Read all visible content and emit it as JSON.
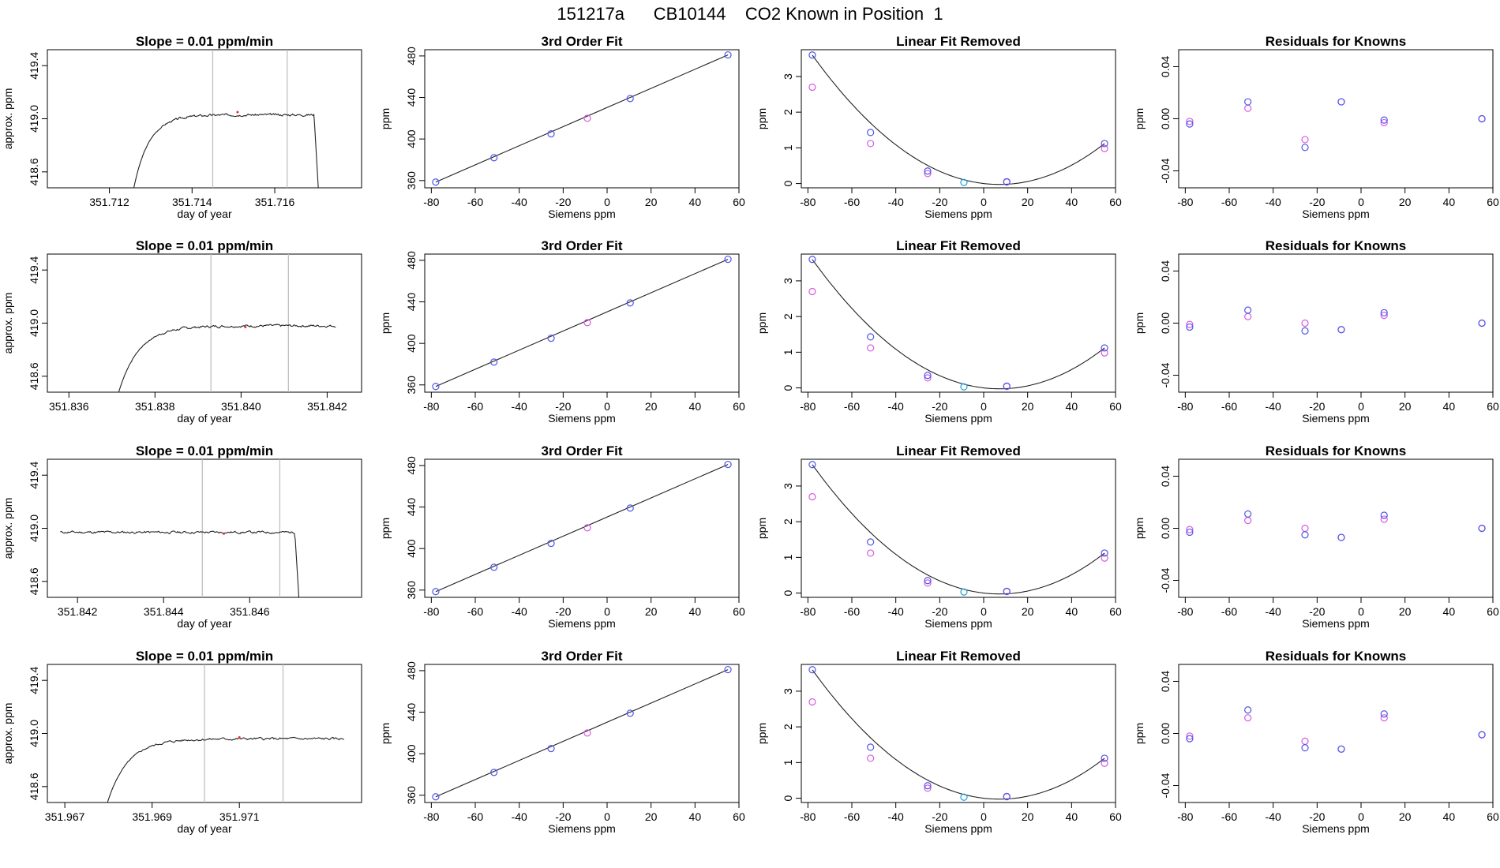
{
  "page_title": "151217a      CB10144    CO2 Known in Position  1",
  "colors": {
    "axis": "#000000",
    "line": "#222222",
    "marker_pink": "#d65ae0",
    "marker_blue": "#4d55e8",
    "marker_cyan": "#1ea0d8",
    "vline": "#bbbbbb",
    "red_mark": "#e03030"
  },
  "chart_data": [
    {
      "type": "line",
      "row": 1,
      "title": "Slope =  0.01  ppm/min",
      "xlabel": "day of year",
      "ylabel": "approx. ppm",
      "xlim": [
        351.7105,
        351.7181
      ],
      "ylim": [
        418.48,
        419.52
      ],
      "xticks": [
        351.712,
        351.714,
        351.716
      ],
      "yticks": [
        418.6,
        419.0,
        419.4
      ],
      "vlines": [
        351.7145,
        351.7163
      ],
      "red_point": [
        351.7151,
        419.05
      ],
      "start": 351.7125,
      "end": 351.7171,
      "drop": 351.71695,
      "level": 419.03,
      "rise": 0.0012,
      "amp": 0.016,
      "seed": 3
    },
    {
      "type": "line",
      "row": 2,
      "title": "Slope =  0.01  ppm/min",
      "xlabel": "day of year",
      "ylabel": "approx. ppm",
      "xlim": [
        351.8355,
        351.8428
      ],
      "ylim": [
        418.48,
        419.52
      ],
      "xticks": [
        351.836,
        351.838,
        351.84,
        351.842
      ],
      "yticks": [
        418.6,
        419.0,
        419.4
      ],
      "vlines": [
        351.8393,
        351.8411
      ],
      "red_point": [
        351.8401,
        418.97
      ],
      "start": 351.837,
      "end": 351.8422,
      "drop": null,
      "level": 418.98,
      "rise": 0.0015,
      "amp": 0.018,
      "seed": 7
    },
    {
      "type": "line",
      "row": 3,
      "title": "Slope =  0.01  ppm/min",
      "xlabel": "day of year",
      "ylabel": "approx. ppm",
      "xlim": [
        351.8413,
        351.8486
      ],
      "ylim": [
        418.48,
        419.52
      ],
      "xticks": [
        351.842,
        351.844,
        351.846
      ],
      "yticks": [
        418.6,
        419.0,
        419.4
      ],
      "vlines": [
        351.8449,
        351.8467
      ],
      "red_point": [
        351.8454,
        418.96
      ],
      "start": 351.8416,
      "end": 351.8472,
      "drop": 351.84705,
      "level": 418.97,
      "rise": 0,
      "amp": 0.018,
      "seed": 11
    },
    {
      "type": "line",
      "row": 4,
      "title": "Slope =  0.01  ppm/min",
      "xlabel": "day of year",
      "ylabel": "approx. ppm",
      "xlim": [
        351.9666,
        351.9738
      ],
      "ylim": [
        418.48,
        419.52
      ],
      "xticks": [
        351.967,
        351.969,
        351.971
      ],
      "yticks": [
        418.6,
        419.0,
        419.4
      ],
      "vlines": [
        351.9702,
        351.972
      ],
      "red_point": [
        351.971,
        418.97
      ],
      "start": 351.9678,
      "end": 351.9734,
      "drop": null,
      "level": 418.96,
      "rise": 0.0015,
      "amp": 0.018,
      "seed": 5
    },
    {
      "type": "scatter",
      "row": 1,
      "title": "3rd Order Fit",
      "xlabel": "Siemens ppm",
      "ylabel": "ppm",
      "xlim": [
        -83,
        60
      ],
      "ylim": [
        353,
        486
      ],
      "xticks": [
        -80,
        -60,
        -40,
        -20,
        0,
        20,
        40,
        60
      ],
      "yticks": [
        360,
        400,
        440,
        480
      ],
      "line": [
        [
          -78,
          358.5
        ],
        [
          55,
          481
        ]
      ],
      "points": [
        [
          -78,
          358.5,
          "blue"
        ],
        [
          -51.5,
          382,
          "blue"
        ],
        [
          -25.5,
          405,
          "blue"
        ],
        [
          -9,
          420,
          "pink"
        ],
        [
          10.5,
          439,
          "blue"
        ],
        [
          55,
          481,
          "blue"
        ]
      ]
    },
    {
      "type": "scatter",
      "row": 2,
      "title": "3rd Order Fit",
      "xlabel": "Siemens ppm",
      "ylabel": "ppm",
      "xlim": [
        -83,
        60
      ],
      "ylim": [
        353,
        486
      ],
      "xticks": [
        -80,
        -60,
        -40,
        -20,
        0,
        20,
        40,
        60
      ],
      "yticks": [
        360,
        400,
        440,
        480
      ],
      "line": [
        [
          -78,
          358.5
        ],
        [
          55,
          481
        ]
      ],
      "points": [
        [
          -78,
          358.5,
          "blue"
        ],
        [
          -51.5,
          382,
          "blue"
        ],
        [
          -25.5,
          405,
          "blue"
        ],
        [
          -9,
          420,
          "pink"
        ],
        [
          10.5,
          439,
          "blue"
        ],
        [
          55,
          481,
          "blue"
        ]
      ]
    },
    {
      "type": "scatter",
      "row": 3,
      "title": "3rd Order Fit",
      "xlabel": "Siemens ppm",
      "ylabel": "ppm",
      "xlim": [
        -83,
        60
      ],
      "ylim": [
        353,
        486
      ],
      "xticks": [
        -80,
        -60,
        -40,
        -20,
        0,
        20,
        40,
        60
      ],
      "yticks": [
        360,
        400,
        440,
        480
      ],
      "line": [
        [
          -78,
          358.5
        ],
        [
          55,
          481
        ]
      ],
      "points": [
        [
          -78,
          358.5,
          "blue"
        ],
        [
          -51.5,
          382,
          "blue"
        ],
        [
          -25.5,
          405,
          "blue"
        ],
        [
          -9,
          420,
          "pink"
        ],
        [
          10.5,
          439,
          "blue"
        ],
        [
          55,
          481,
          "blue"
        ]
      ]
    },
    {
      "type": "scatter",
      "row": 4,
      "title": "3rd Order Fit",
      "xlabel": "Siemens ppm",
      "ylabel": "ppm",
      "xlim": [
        -83,
        60
      ],
      "ylim": [
        353,
        486
      ],
      "xticks": [
        -80,
        -60,
        -40,
        -20,
        0,
        20,
        40,
        60
      ],
      "yticks": [
        360,
        400,
        440,
        480
      ],
      "line": [
        [
          -78,
          358.5
        ],
        [
          55,
          481
        ]
      ],
      "points": [
        [
          -78,
          358.5,
          "blue"
        ],
        [
          -51.5,
          382,
          "blue"
        ],
        [
          -25.5,
          405,
          "blue"
        ],
        [
          -9,
          420,
          "pink"
        ],
        [
          10.5,
          439,
          "blue"
        ],
        [
          55,
          481,
          "blue"
        ]
      ]
    },
    {
      "type": "scatter",
      "row": 1,
      "title": "Linear Fit Removed",
      "xlabel": "Siemens ppm",
      "ylabel": "ppm",
      "xlim": [
        -83,
        60
      ],
      "ylim": [
        -0.12,
        3.75
      ],
      "xticks": [
        -80,
        -60,
        -40,
        -20,
        0,
        20,
        40,
        60
      ],
      "yticks": [
        0,
        1,
        2,
        3
      ],
      "curve": [
        -78,
        3.6,
        0,
        0,
        55,
        1.12
      ],
      "points": [
        [
          -78,
          2.7,
          "pink"
        ],
        [
          -78,
          3.6,
          "blue"
        ],
        [
          -51.5,
          1.12,
          "pink"
        ],
        [
          -51.5,
          1.43,
          "blue"
        ],
        [
          -25.5,
          0.28,
          "pink"
        ],
        [
          -25.5,
          0.35,
          "blue"
        ],
        [
          -9,
          0.03,
          "cyan"
        ],
        [
          10.5,
          0.04,
          "pink"
        ],
        [
          10.5,
          0.05,
          "blue"
        ],
        [
          55,
          0.98,
          "pink"
        ],
        [
          55,
          1.12,
          "blue"
        ]
      ]
    },
    {
      "type": "scatter",
      "row": 2,
      "title": "Linear Fit Removed",
      "xlabel": "Siemens ppm",
      "ylabel": "ppm",
      "xlim": [
        -83,
        60
      ],
      "ylim": [
        -0.12,
        3.75
      ],
      "xticks": [
        -80,
        -60,
        -40,
        -20,
        0,
        20,
        40,
        60
      ],
      "yticks": [
        0,
        1,
        2,
        3
      ],
      "curve": [
        -78,
        3.6,
        0,
        0,
        55,
        1.12
      ],
      "points": [
        [
          -78,
          2.7,
          "pink"
        ],
        [
          -78,
          3.6,
          "blue"
        ],
        [
          -51.5,
          1.12,
          "pink"
        ],
        [
          -51.5,
          1.43,
          "blue"
        ],
        [
          -25.5,
          0.28,
          "pink"
        ],
        [
          -25.5,
          0.35,
          "blue"
        ],
        [
          -9,
          0.03,
          "cyan"
        ],
        [
          10.5,
          0.04,
          "pink"
        ],
        [
          10.5,
          0.05,
          "blue"
        ],
        [
          55,
          0.98,
          "pink"
        ],
        [
          55,
          1.12,
          "blue"
        ]
      ]
    },
    {
      "type": "scatter",
      "row": 3,
      "title": "Linear Fit Removed",
      "xlabel": "Siemens ppm",
      "ylabel": "ppm",
      "xlim": [
        -83,
        60
      ],
      "ylim": [
        -0.12,
        3.75
      ],
      "xticks": [
        -80,
        -60,
        -40,
        -20,
        0,
        20,
        40,
        60
      ],
      "yticks": [
        0,
        1,
        2,
        3
      ],
      "curve": [
        -78,
        3.6,
        0,
        0,
        55,
        1.12
      ],
      "points": [
        [
          -78,
          2.7,
          "pink"
        ],
        [
          -78,
          3.6,
          "blue"
        ],
        [
          -51.5,
          1.12,
          "pink"
        ],
        [
          -51.5,
          1.43,
          "blue"
        ],
        [
          -25.5,
          0.28,
          "pink"
        ],
        [
          -25.5,
          0.35,
          "blue"
        ],
        [
          -9,
          0.03,
          "cyan"
        ],
        [
          10.5,
          0.04,
          "pink"
        ],
        [
          10.5,
          0.05,
          "blue"
        ],
        [
          55,
          0.98,
          "pink"
        ],
        [
          55,
          1.12,
          "blue"
        ]
      ]
    },
    {
      "type": "scatter",
      "row": 4,
      "title": "Linear Fit Removed",
      "xlabel": "Siemens ppm",
      "ylabel": "ppm",
      "xlim": [
        -83,
        60
      ],
      "ylim": [
        -0.12,
        3.75
      ],
      "xticks": [
        -80,
        -60,
        -40,
        -20,
        0,
        20,
        40,
        60
      ],
      "yticks": [
        0,
        1,
        2,
        3
      ],
      "curve": [
        -78,
        3.6,
        0,
        0,
        55,
        1.12
      ],
      "points": [
        [
          -78,
          2.7,
          "pink"
        ],
        [
          -78,
          3.6,
          "blue"
        ],
        [
          -51.5,
          1.12,
          "pink"
        ],
        [
          -51.5,
          1.43,
          "blue"
        ],
        [
          -25.5,
          0.28,
          "pink"
        ],
        [
          -25.5,
          0.35,
          "blue"
        ],
        [
          -9,
          0.03,
          "cyan"
        ],
        [
          10.5,
          0.04,
          "pink"
        ],
        [
          10.5,
          0.05,
          "blue"
        ],
        [
          55,
          0.98,
          "pink"
        ],
        [
          55,
          1.12,
          "blue"
        ]
      ]
    },
    {
      "type": "scatter",
      "row": 1,
      "title": "Residuals for Knowns",
      "xlabel": "Siemens ppm",
      "ylabel": "ppm",
      "xlim": [
        -83,
        60
      ],
      "ylim": [
        -0.053,
        0.053
      ],
      "xticks": [
        -80,
        -60,
        -40,
        -20,
        0,
        20,
        40,
        60
      ],
      "yticks": [
        -0.04,
        0.0,
        0.04
      ],
      "points": [
        [
          -78,
          -0.002,
          "pink"
        ],
        [
          -78,
          -0.004,
          "blue"
        ],
        [
          -51.5,
          0.008,
          "pink"
        ],
        [
          -51.5,
          0.013,
          "blue"
        ],
        [
          -25.5,
          -0.016,
          "pink"
        ],
        [
          -25.5,
          -0.022,
          "blue"
        ],
        [
          -9,
          0.013,
          "pink"
        ],
        [
          -9,
          0.013,
          "blue"
        ],
        [
          10.5,
          -0.003,
          "pink"
        ],
        [
          10.5,
          -0.001,
          "blue"
        ],
        [
          55,
          0.0,
          "pink"
        ],
        [
          55,
          0.0,
          "blue"
        ]
      ]
    },
    {
      "type": "scatter",
      "row": 2,
      "title": "Residuals for Knowns",
      "xlabel": "Siemens ppm",
      "ylabel": "ppm",
      "xlim": [
        -83,
        60
      ],
      "ylim": [
        -0.053,
        0.053
      ],
      "xticks": [
        -80,
        -60,
        -40,
        -20,
        0,
        20,
        40,
        60
      ],
      "yticks": [
        -0.04,
        0.0,
        0.04
      ],
      "points": [
        [
          -78,
          -0.001,
          "pink"
        ],
        [
          -78,
          -0.003,
          "blue"
        ],
        [
          -51.5,
          0.005,
          "pink"
        ],
        [
          -51.5,
          0.01,
          "blue"
        ],
        [
          -25.5,
          0.0,
          "pink"
        ],
        [
          -25.5,
          -0.006,
          "blue"
        ],
        [
          -9,
          -0.005,
          "pink"
        ],
        [
          -9,
          -0.005,
          "blue"
        ],
        [
          10.5,
          0.006,
          "pink"
        ],
        [
          10.5,
          0.008,
          "blue"
        ],
        [
          55,
          0.0,
          "pink"
        ],
        [
          55,
          0.0,
          "blue"
        ]
      ]
    },
    {
      "type": "scatter",
      "row": 3,
      "title": "Residuals for Knowns",
      "xlabel": "Siemens ppm",
      "ylabel": "ppm",
      "xlim": [
        -83,
        60
      ],
      "ylim": [
        -0.053,
        0.053
      ],
      "xticks": [
        -80,
        -60,
        -40,
        -20,
        0,
        20,
        40,
        60
      ],
      "yticks": [
        -0.04,
        0.0,
        0.04
      ],
      "points": [
        [
          -78,
          -0.001,
          "pink"
        ],
        [
          -78,
          -0.003,
          "blue"
        ],
        [
          -51.5,
          0.006,
          "pink"
        ],
        [
          -51.5,
          0.011,
          "blue"
        ],
        [
          -25.5,
          0.0,
          "pink"
        ],
        [
          -25.5,
          -0.005,
          "blue"
        ],
        [
          -9,
          -0.007,
          "pink"
        ],
        [
          -9,
          -0.007,
          "blue"
        ],
        [
          10.5,
          0.007,
          "pink"
        ],
        [
          10.5,
          0.01,
          "blue"
        ],
        [
          55,
          0.0,
          "pink"
        ],
        [
          55,
          0.0,
          "blue"
        ]
      ]
    },
    {
      "type": "scatter",
      "row": 4,
      "title": "Residuals for Knowns",
      "xlabel": "Siemens ppm",
      "ylabel": "ppm",
      "xlim": [
        -83,
        60
      ],
      "ylim": [
        -0.053,
        0.053
      ],
      "xticks": [
        -80,
        -60,
        -40,
        -20,
        0,
        20,
        40,
        60
      ],
      "yticks": [
        -0.04,
        0.0,
        0.04
      ],
      "points": [
        [
          -78,
          -0.002,
          "pink"
        ],
        [
          -78,
          -0.004,
          "blue"
        ],
        [
          -51.5,
          0.012,
          "pink"
        ],
        [
          -51.5,
          0.018,
          "blue"
        ],
        [
          -25.5,
          -0.006,
          "pink"
        ],
        [
          -25.5,
          -0.011,
          "blue"
        ],
        [
          -9,
          -0.012,
          "pink"
        ],
        [
          -9,
          -0.012,
          "blue"
        ],
        [
          10.5,
          0.012,
          "pink"
        ],
        [
          10.5,
          0.015,
          "blue"
        ],
        [
          55,
          -0.001,
          "pink"
        ],
        [
          55,
          -0.001,
          "blue"
        ]
      ]
    }
  ]
}
